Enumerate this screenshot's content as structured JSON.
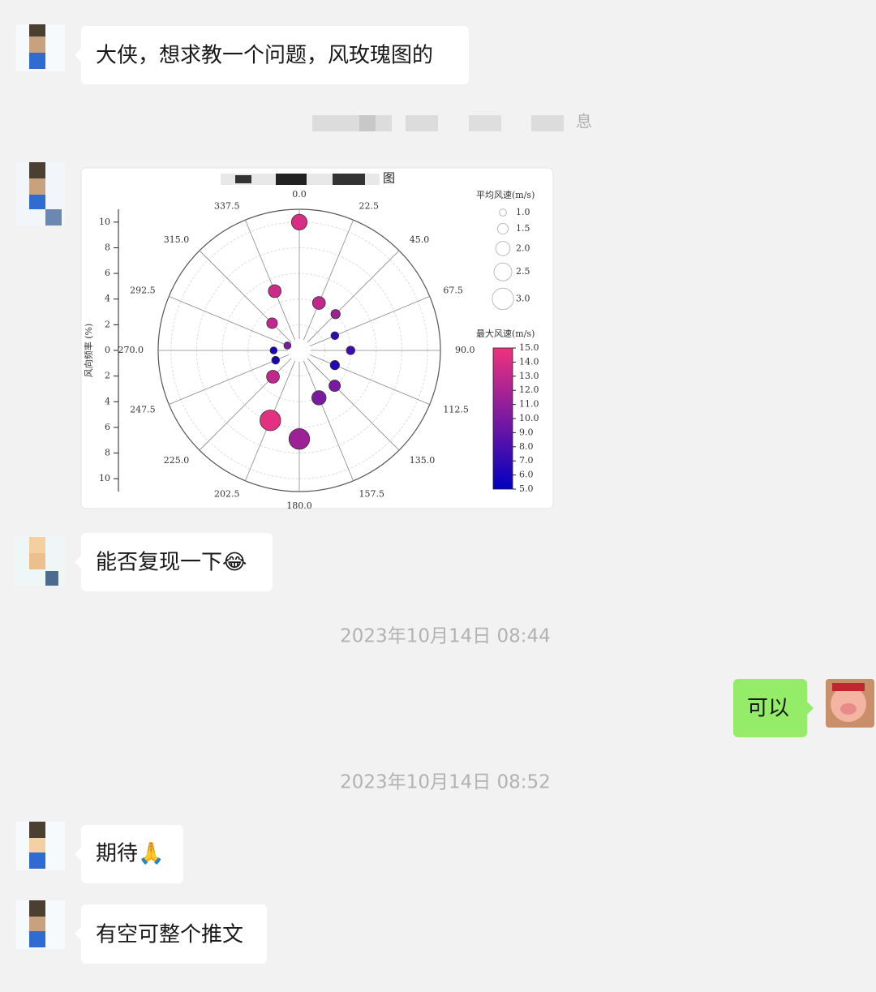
{
  "messages": [
    {
      "text": "大侠，想求教一个问题，风玫瑰图的"
    },
    {
      "text": "能否复现一下😂"
    },
    {
      "text": "可以"
    },
    {
      "text": "期待🙏"
    },
    {
      "text": "有空可整个推文"
    }
  ],
  "timestamps": [
    "2023年10月14日 08:44",
    "2023年10月14日 08:52"
  ],
  "notice": "息",
  "chart_data": {
    "type": "polar-scatter",
    "title": "图",
    "theta": [
      0,
      22.5,
      45,
      67.5,
      90,
      112.5,
      135,
      157.5,
      180,
      202.5,
      225,
      247.5,
      270,
      292.5,
      315,
      337.5
    ],
    "r": [
      10.0,
      4.0,
      4.0,
      3.0,
      4.0,
      3.0,
      3.9,
      4.0,
      6.9,
      5.9,
      2.9,
      2.0,
      2.0,
      1.0,
      3.0,
      5.0
    ],
    "size": [
      2.2,
      1.8,
      1.3,
      1.1,
      1.2,
      1.3,
      1.6,
      2.0,
      2.9,
      2.9,
      1.8,
      1.1,
      1.0,
      1.0,
      1.5,
      1.8
    ],
    "max_speed": [
      14,
      13,
      11.5,
      7,
      7.5,
      6.5,
      10,
      10,
      11.5,
      14.5,
      13,
      6,
      6,
      10,
      13,
      13.5
    ],
    "thetaticks": [
      {
        "value": 0,
        "label": "0.0"
      },
      {
        "value": 22.5,
        "label": "22.5"
      },
      {
        "value": 45,
        "label": "45.0"
      },
      {
        "value": 67.5,
        "label": "67.5"
      },
      {
        "value": 90,
        "label": "90.0"
      },
      {
        "value": 112.5,
        "label": "112.5"
      },
      {
        "value": 135,
        "label": "135.0"
      },
      {
        "value": 157.5,
        "label": "157.5"
      },
      {
        "value": 180,
        "label": "180.0"
      },
      {
        "value": 202.5,
        "label": "202.5"
      },
      {
        "value": 225,
        "label": "225.0"
      },
      {
        "value": 247.5,
        "label": "247.5"
      },
      {
        "value": 270,
        "label": "270.0"
      },
      {
        "value": 292.5,
        "label": "292.5"
      },
      {
        "value": 315,
        "label": "315.0"
      },
      {
        "value": 337.5,
        "label": "337.5"
      }
    ],
    "rlim": [
      0,
      11
    ],
    "ylabel": "风向频率 (%)",
    "ylim": [
      -11,
      11
    ],
    "yticks": [
      10,
      8,
      6,
      4,
      2,
      0,
      {
        "value": -2,
        "label": "2"
      },
      {
        "value": -4,
        "label": "4"
      },
      {
        "value": -6,
        "label": "6"
      },
      {
        "value": -8,
        "label": "8"
      },
      {
        "value": -10,
        "label": "10"
      }
    ],
    "size_legend": {
      "title": "平均风速(m/s)",
      "values": [
        {
          "value": 1,
          "label": "1.0"
        },
        {
          "value": 1.5,
          "label": "1.5"
        },
        {
          "value": 2,
          "label": "2.0"
        },
        {
          "value": 2.5,
          "label": "2.5"
        },
        {
          "value": 3,
          "label": "3.0"
        }
      ]
    },
    "colorbar": {
      "title": "最大风速(m/s)",
      "clim": [
        5,
        15
      ],
      "colormap": [
        "#0000c0",
        "#7a1aa0",
        "#f0327e"
      ],
      "ticks": [
        {
          "value": 15,
          "label": "15.0"
        },
        {
          "value": 14,
          "label": "14.0"
        },
        {
          "value": 13,
          "label": "13.0"
        },
        {
          "value": 12,
          "label": "12.0"
        },
        {
          "value": 11,
          "label": "11.0"
        },
        {
          "value": 10,
          "label": "10.0"
        },
        {
          "value": 9,
          "label": "9.0"
        },
        {
          "value": 8,
          "label": "8.0"
        },
        {
          "value": 7,
          "label": "7.0"
        },
        {
          "value": 6,
          "label": "6.0"
        },
        {
          "value": 5,
          "label": "5.0"
        }
      ]
    }
  }
}
